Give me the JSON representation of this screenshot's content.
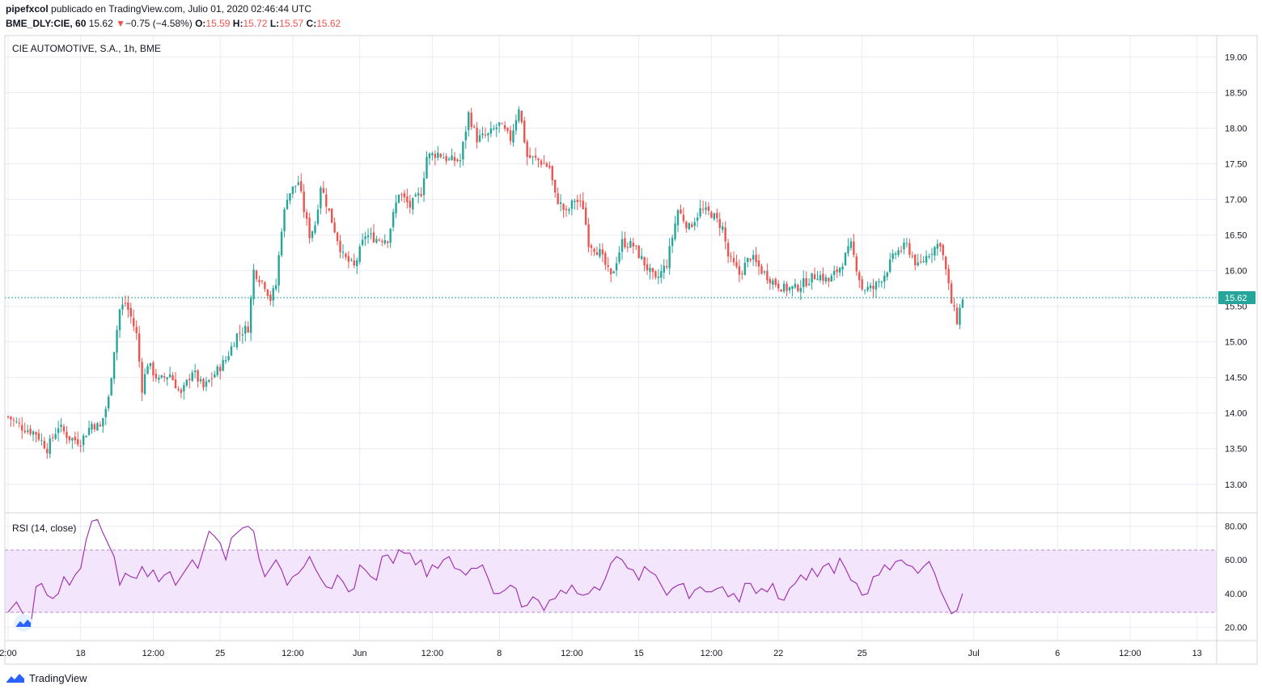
{
  "header": {
    "publisher": "pipefxcol",
    "published_text": "publicado en TradingView.com, Julio 01, 2020 02:46:44 UTC",
    "symbol": "BME_DLY:CIE, 60",
    "last": "15.62",
    "change": "−0.75 (−4.58%)",
    "o_label": "O:",
    "o": "15.59",
    "h_label": "H:",
    "h": "15.72",
    "l_label": "L:",
    "l": "15.57",
    "c_label": "C:",
    "c": "15.62"
  },
  "footer": {
    "brand": "TradingView"
  },
  "colors": {
    "up": "#26a69a",
    "down": "#ef5350",
    "rsi": "#9c27b0",
    "rsi_band": "#f3e5fb",
    "grid": "#e9ecf2",
    "price_line": "#26a69a"
  },
  "chart_data": [
    {
      "type": "candlestick",
      "title": "CIE AUTOMOTIVE, S.A., 1h, BME",
      "ylim": [
        12.6,
        19.3
      ],
      "yticks": [
        "19.00",
        "18.50",
        "18.00",
        "17.50",
        "17.00",
        "16.50",
        "16.00",
        "15.50",
        "15.00",
        "14.50",
        "14.00",
        "13.50",
        "13.00"
      ],
      "last_price_label": "15.62",
      "last_price": 15.62,
      "xticks": [
        {
          "label": "2:00",
          "t": 0
        },
        {
          "label": "18",
          "t": 26
        },
        {
          "label": "12:00",
          "t": 52
        },
        {
          "label": "25",
          "t": 76
        },
        {
          "label": "12:00",
          "t": 102
        },
        {
          "label": "Jun",
          "t": 126
        },
        {
          "label": "12:00",
          "t": 152
        },
        {
          "label": "8",
          "t": 176
        },
        {
          "label": "12:00",
          "t": 202
        },
        {
          "label": "15",
          "t": 226
        },
        {
          "label": "12:00",
          "t": 252
        },
        {
          "label": "22",
          "t": 276
        },
        {
          "label": "25",
          "t": 306
        },
        {
          "label": "Jul",
          "t": 346
        },
        {
          "label": "6",
          "t": 376
        },
        {
          "label": "12:00",
          "t": 402
        },
        {
          "label": "13",
          "t": 426
        }
      ],
      "close_path": [
        [
          0,
          13.95
        ],
        [
          5,
          13.8
        ],
        [
          10,
          13.72
        ],
        [
          14,
          13.5
        ],
        [
          18,
          13.82
        ],
        [
          22,
          13.65
        ],
        [
          26,
          13.6
        ],
        [
          30,
          13.85
        ],
        [
          33,
          13.8
        ],
        [
          36,
          14.2
        ],
        [
          38,
          14.9
        ],
        [
          40,
          15.45
        ],
        [
          42,
          15.55
        ],
        [
          44,
          15.35
        ],
        [
          46,
          15.1
        ],
        [
          48,
          14.35
        ],
        [
          50,
          14.7
        ],
        [
          54,
          14.45
        ],
        [
          58,
          14.55
        ],
        [
          62,
          14.25
        ],
        [
          66,
          14.6
        ],
        [
          70,
          14.35
        ],
        [
          74,
          14.55
        ],
        [
          78,
          14.75
        ],
        [
          82,
          15.1
        ],
        [
          86,
          15.2
        ],
        [
          88,
          16.0
        ],
        [
          92,
          15.8
        ],
        [
          94,
          15.6
        ],
        [
          96,
          15.8
        ],
        [
          98,
          16.6
        ],
        [
          100,
          17.05
        ],
        [
          104,
          17.25
        ],
        [
          106,
          16.85
        ],
        [
          108,
          16.5
        ],
        [
          110,
          16.65
        ],
        [
          112,
          17.2
        ],
        [
          116,
          16.7
        ],
        [
          120,
          16.2
        ],
        [
          124,
          16.05
        ],
        [
          128,
          16.5
        ],
        [
          132,
          16.45
        ],
        [
          136,
          16.45
        ],
        [
          140,
          17.1
        ],
        [
          144,
          16.9
        ],
        [
          148,
          17.1
        ],
        [
          150,
          17.6
        ],
        [
          154,
          17.65
        ],
        [
          158,
          17.55
        ],
        [
          162,
          17.55
        ],
        [
          165,
          18.2
        ],
        [
          168,
          17.85
        ],
        [
          172,
          17.9
        ],
        [
          176,
          18.05
        ],
        [
          180,
          17.85
        ],
        [
          183,
          18.3
        ],
        [
          186,
          17.6
        ],
        [
          190,
          17.55
        ],
        [
          194,
          17.45
        ],
        [
          196,
          17.05
        ],
        [
          200,
          16.8
        ],
        [
          203,
          17.0
        ],
        [
          206,
          16.9
        ],
        [
          208,
          16.4
        ],
        [
          212,
          16.25
        ],
        [
          216,
          15.9
        ],
        [
          220,
          16.4
        ],
        [
          224,
          16.35
        ],
        [
          228,
          16.1
        ],
        [
          232,
          15.85
        ],
        [
          236,
          16.1
        ],
        [
          240,
          16.85
        ],
        [
          244,
          16.6
        ],
        [
          248,
          16.85
        ],
        [
          252,
          16.8
        ],
        [
          256,
          16.6
        ],
        [
          258,
          16.2
        ],
        [
          262,
          15.95
        ],
        [
          266,
          16.2
        ],
        [
          270,
          16.0
        ],
        [
          274,
          15.85
        ],
        [
          278,
          15.75
        ],
        [
          282,
          15.75
        ],
        [
          286,
          15.85
        ],
        [
          290,
          15.95
        ],
        [
          294,
          15.85
        ],
        [
          298,
          16.05
        ],
        [
          302,
          16.35
        ],
        [
          306,
          15.75
        ],
        [
          310,
          15.75
        ],
        [
          314,
          15.95
        ],
        [
          318,
          16.25
        ],
        [
          322,
          16.35
        ],
        [
          326,
          16.05
        ],
        [
          330,
          16.25
        ],
        [
          334,
          16.4
        ],
        [
          336,
          16.0
        ],
        [
          338,
          15.55
        ],
        [
          340,
          15.3
        ],
        [
          342,
          15.62
        ]
      ]
    },
    {
      "type": "line",
      "title": "RSI (14, close)",
      "ylim": [
        12,
        88
      ],
      "yticks": [
        "80.00",
        "60.00",
        "40.00",
        "20.00"
      ],
      "bands": [
        30,
        70
      ],
      "path": [
        [
          0,
          29
        ],
        [
          3,
          35
        ],
        [
          6,
          26
        ],
        [
          8,
          20
        ],
        [
          10,
          44
        ],
        [
          12,
          46
        ],
        [
          14,
          39
        ],
        [
          16,
          37
        ],
        [
          18,
          40
        ],
        [
          20,
          50
        ],
        [
          22,
          45
        ],
        [
          24,
          51
        ],
        [
          26,
          55
        ],
        [
          28,
          72
        ],
        [
          30,
          83
        ],
        [
          32,
          84
        ],
        [
          34,
          76
        ],
        [
          36,
          69
        ],
        [
          38,
          62
        ],
        [
          40,
          45
        ],
        [
          42,
          52
        ],
        [
          44,
          50
        ],
        [
          46,
          49
        ],
        [
          48,
          56
        ],
        [
          50,
          50
        ],
        [
          52,
          54
        ],
        [
          54,
          47
        ],
        [
          56,
          51
        ],
        [
          58,
          53
        ],
        [
          60,
          45
        ],
        [
          62,
          50
        ],
        [
          64,
          55
        ],
        [
          66,
          60
        ],
        [
          68,
          55
        ],
        [
          70,
          66
        ],
        [
          72,
          77
        ],
        [
          74,
          74
        ],
        [
          76,
          70
        ],
        [
          78,
          60
        ],
        [
          80,
          73
        ],
        [
          82,
          76
        ],
        [
          84,
          79
        ],
        [
          86,
          80
        ],
        [
          88,
          77
        ],
        [
          90,
          60
        ],
        [
          92,
          50
        ],
        [
          94,
          55
        ],
        [
          96,
          60
        ],
        [
          98,
          54
        ],
        [
          100,
          45
        ],
        [
          102,
          50
        ],
        [
          104,
          52
        ],
        [
          106,
          56
        ],
        [
          108,
          62
        ],
        [
          110,
          55
        ],
        [
          112,
          49
        ],
        [
          114,
          44
        ],
        [
          116,
          43
        ],
        [
          118,
          51
        ],
        [
          120,
          47
        ],
        [
          122,
          41
        ],
        [
          124,
          43
        ],
        [
          126,
          57
        ],
        [
          128,
          54
        ],
        [
          130,
          50
        ],
        [
          132,
          48
        ],
        [
          134,
          62
        ],
        [
          136,
          63
        ],
        [
          138,
          58
        ],
        [
          140,
          66
        ],
        [
          142,
          64
        ],
        [
          144,
          64
        ],
        [
          146,
          57
        ],
        [
          148,
          60
        ],
        [
          150,
          50
        ],
        [
          152,
          57
        ],
        [
          154,
          55
        ],
        [
          156,
          60
        ],
        [
          158,
          62
        ],
        [
          160,
          55
        ],
        [
          162,
          54
        ],
        [
          164,
          51
        ],
        [
          166,
          55
        ],
        [
          168,
          55
        ],
        [
          170,
          57
        ],
        [
          172,
          49
        ],
        [
          174,
          40
        ],
        [
          176,
          40
        ],
        [
          178,
          42
        ],
        [
          180,
          45
        ],
        [
          182,
          43
        ],
        [
          184,
          32
        ],
        [
          186,
          33
        ],
        [
          188,
          38
        ],
        [
          190,
          36
        ],
        [
          192,
          30
        ],
        [
          194,
          36
        ],
        [
          196,
          37
        ],
        [
          198,
          42
        ],
        [
          200,
          40
        ],
        [
          202,
          45
        ],
        [
          204,
          40
        ],
        [
          206,
          39
        ],
        [
          208,
          40
        ],
        [
          210,
          44
        ],
        [
          212,
          42
        ],
        [
          214,
          49
        ],
        [
          216,
          58
        ],
        [
          218,
          62
        ],
        [
          220,
          60
        ],
        [
          222,
          55
        ],
        [
          224,
          54
        ],
        [
          226,
          48
        ],
        [
          228,
          56
        ],
        [
          230,
          53
        ],
        [
          232,
          51
        ],
        [
          234,
          45
        ],
        [
          236,
          39
        ],
        [
          238,
          43
        ],
        [
          240,
          45
        ],
        [
          242,
          46
        ],
        [
          244,
          37
        ],
        [
          246,
          42
        ],
        [
          248,
          44
        ],
        [
          250,
          41
        ],
        [
          252,
          41
        ],
        [
          254,
          43
        ],
        [
          256,
          44
        ],
        [
          258,
          38
        ],
        [
          260,
          40
        ],
        [
          262,
          35
        ],
        [
          264,
          46
        ],
        [
          266,
          46
        ],
        [
          268,
          40
        ],
        [
          270,
          43
        ],
        [
          272,
          41
        ],
        [
          274,
          46
        ],
        [
          276,
          37
        ],
        [
          278,
          36
        ],
        [
          280,
          43
        ],
        [
          282,
          46
        ],
        [
          284,
          51
        ],
        [
          286,
          48
        ],
        [
          288,
          55
        ],
        [
          290,
          50
        ],
        [
          292,
          56
        ],
        [
          294,
          58
        ],
        [
          296,
          52
        ],
        [
          298,
          61
        ],
        [
          300,
          55
        ],
        [
          302,
          48
        ],
        [
          304,
          46
        ],
        [
          306,
          39
        ],
        [
          308,
          40
        ],
        [
          310,
          50
        ],
        [
          312,
          51
        ],
        [
          314,
          57
        ],
        [
          316,
          54
        ],
        [
          318,
          59
        ],
        [
          320,
          60
        ],
        [
          322,
          57
        ],
        [
          324,
          56
        ],
        [
          326,
          52
        ],
        [
          328,
          56
        ],
        [
          330,
          59
        ],
        [
          332,
          52
        ],
        [
          334,
          42
        ],
        [
          336,
          35
        ],
        [
          338,
          28
        ],
        [
          340,
          30
        ],
        [
          342,
          40
        ]
      ]
    }
  ]
}
